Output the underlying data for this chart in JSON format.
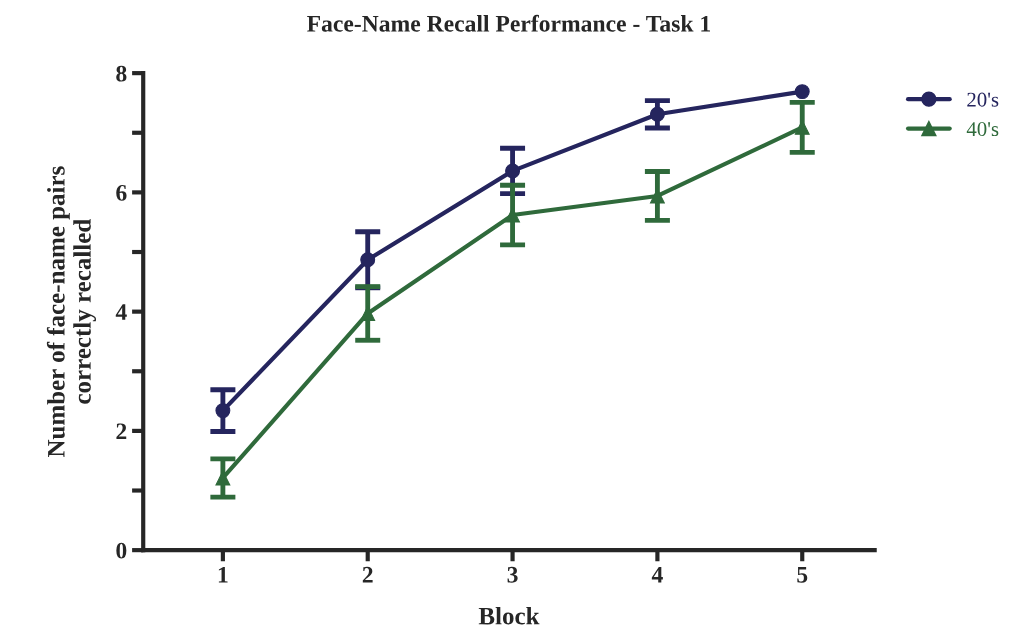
{
  "chart_data": {
    "type": "line",
    "title": "Face-Name Recall Performance - Task 1",
    "xlabel": "Block",
    "ylabel": "Number of face-name pairs\ncorrectly recalled",
    "categories": [
      "1",
      "2",
      "3",
      "4",
      "5"
    ],
    "series": [
      {
        "name": "20's",
        "color": "#25255e",
        "marker": "circle",
        "values": [
          2.34,
          4.87,
          6.36,
          7.31,
          7.69
        ],
        "errors": [
          0.35,
          0.47,
          0.38,
          0.23,
          null
        ]
      },
      {
        "name": "40's",
        "color": "#2f6a3b",
        "marker": "triangle",
        "values": [
          1.21,
          3.97,
          5.62,
          5.94,
          7.09
        ],
        "errors": [
          0.32,
          0.45,
          0.5,
          0.41,
          0.42
        ]
      }
    ],
    "ylim": [
      0,
      8
    ],
    "yticks": [
      0,
      {
        "value": 1,
        "label": null
      },
      2,
      {
        "value": 3,
        "label": null
      },
      4,
      {
        "value": 5,
        "label": null
      },
      6,
      {
        "value": 7,
        "label": null
      },
      8
    ],
    "grid": false,
    "legend": "top right",
    "line_style": "solid"
  }
}
